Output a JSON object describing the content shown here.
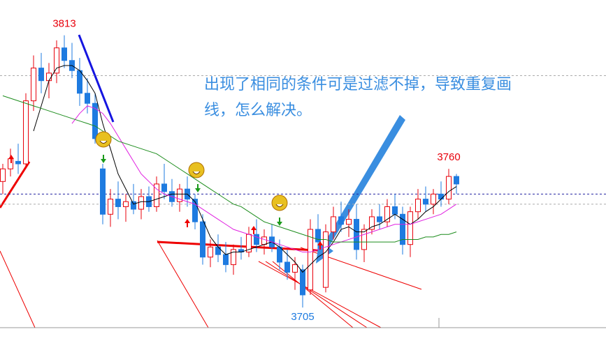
{
  "chart_data": {
    "type": "candlestick",
    "up_color": "#e8000b",
    "down_color": "#1e7be0",
    "ylim": [
      3697,
      3827
    ],
    "open": [
      3755,
      3760,
      3763,
      3762,
      3787,
      3800,
      3795,
      3798,
      3808,
      3803,
      3799,
      3790,
      3786,
      3760,
      3742,
      3748,
      3745,
      3747,
      3744,
      3749,
      3745,
      3754,
      3751,
      3747,
      3752,
      3748,
      3739,
      3725,
      3729,
      3726,
      3722,
      3728,
      3727,
      3734,
      3730,
      3733,
      3729,
      3723,
      3719,
      3720,
      3712,
      3736,
      3713,
      3735,
      3741,
      3738,
      3740,
      3728,
      3736,
      3741,
      3739,
      3745,
      3742,
      3730,
      3743,
      3748,
      3746,
      3750,
      3748,
      3757
    ],
    "high": [
      3762,
      3768,
      3770,
      3790,
      3805,
      3806,
      3802,
      3811,
      3813,
      3810,
      3804,
      3796,
      3790,
      3762,
      3752,
      3755,
      3750,
      3754,
      3752,
      3753,
      3757,
      3762,
      3756,
      3754,
      3757,
      3750,
      3742,
      3732,
      3734,
      3731,
      3730,
      3733,
      3737,
      3740,
      3736,
      3738,
      3732,
      3728,
      3725,
      3722,
      3740,
      3742,
      3738,
      3745,
      3747,
      3744,
      3746,
      3738,
      3744,
      3746,
      3748,
      3750,
      3745,
      3745,
      3752,
      3753,
      3752,
      3755,
      3760,
      3758
    ],
    "low": [
      3750,
      3757,
      3758,
      3760,
      3783,
      3790,
      3788,
      3794,
      3800,
      3796,
      3785,
      3782,
      3770,
      3738,
      3737,
      3740,
      3739,
      3742,
      3740,
      3743,
      3743,
      3748,
      3745,
      3743,
      3745,
      3736,
      3722,
      3721,
      3723,
      3719,
      3718,
      3724,
      3725,
      3727,
      3726,
      3727,
      3720,
      3716,
      3712,
      3705,
      3710,
      3728,
      3711,
      3732,
      3735,
      3733,
      3724,
      3723,
      3734,
      3736,
      3737,
      3740,
      3726,
      3725,
      3740,
      3743,
      3742,
      3745,
      3746,
      3750
    ],
    "close": [
      3760,
      3764,
      3762,
      3787,
      3800,
      3795,
      3798,
      3808,
      3803,
      3799,
      3790,
      3786,
      3772,
      3742,
      3748,
      3745,
      3747,
      3744,
      3749,
      3745,
      3754,
      3751,
      3747,
      3752,
      3748,
      3739,
      3725,
      3729,
      3726,
      3722,
      3728,
      3727,
      3734,
      3730,
      3733,
      3729,
      3723,
      3719,
      3722,
      3710,
      3736,
      3731,
      3735,
      3741,
      3738,
      3740,
      3728,
      3736,
      3741,
      3739,
      3745,
      3742,
      3730,
      3743,
      3748,
      3746,
      3750,
      3748,
      3757,
      3754
    ],
    "averages": [
      {
        "color": "#000000",
        "values": [
          null,
          null,
          null,
          null,
          3775,
          3785,
          3795,
          3800,
          3801,
          3801,
          3799,
          3795,
          3790,
          3778,
          3768,
          3758,
          3752,
          3746,
          3747,
          3747,
          3748,
          3749,
          3750,
          3750,
          3750,
          3747,
          3740,
          3733,
          3729,
          3726,
          3727,
          3727,
          3728,
          3729,
          3730,
          3731,
          3729,
          3726,
          3723,
          3719,
          3722,
          3725,
          3727,
          3731,
          3736,
          3737,
          3735,
          3735,
          3737,
          3738,
          3740,
          3742,
          3740,
          3738,
          3740,
          3743,
          3745,
          3748,
          3751,
          3753
        ]
      },
      {
        "color": "#e020e0",
        "values": [
          null,
          null,
          null,
          null,
          null,
          null,
          null,
          null,
          null,
          3778,
          3782,
          3785,
          3784,
          3782,
          3778,
          3773,
          3768,
          3763,
          3758,
          3755,
          3752,
          3750,
          3749,
          3748,
          3747,
          3746,
          3744,
          3742,
          3740,
          3738,
          3736,
          3735,
          3734,
          3733,
          3732,
          3731,
          3730,
          3729,
          3728,
          3727,
          3727,
          3728,
          3729,
          3730,
          3731,
          3732,
          3733,
          3734,
          3735,
          3736,
          3737,
          3738,
          3738,
          3738,
          3739,
          3740,
          3741,
          3742,
          3744,
          3746
        ]
      },
      {
        "color": "#1c8c1c",
        "values": [
          3789,
          3788,
          3787,
          3786,
          3785,
          3784,
          3783,
          3782,
          3781,
          3780,
          3779,
          3778,
          3777,
          3775,
          3773,
          3771,
          3770,
          3769,
          3768,
          3767,
          3766,
          3764,
          3762,
          3760,
          3758,
          3756,
          3754,
          3752,
          3750,
          3748,
          3746,
          3745,
          3743,
          3741,
          3739,
          3738,
          3737,
          3736,
          3735,
          3734,
          3733,
          3732,
          3732,
          3731,
          3731,
          3731,
          3731,
          3731,
          3731,
          3731,
          3731,
          3731,
          3732,
          3732,
          3732,
          3733,
          3733,
          3734,
          3734,
          3735
        ]
      }
    ],
    "hlines": [
      {
        "value": 3750,
        "color": "#2020a0"
      },
      {
        "value": 3797,
        "color": "#aaaaaa"
      },
      {
        "value": 3746,
        "color": "#aaaaaa"
      }
    ],
    "price_labels": [
      {
        "value": 3813,
        "label": "3813",
        "color": "#e8000b"
      },
      {
        "value": 3760,
        "label": "3760",
        "color": "#e8000b"
      },
      {
        "value": 3705,
        "label": "3705",
        "color": "#1e7be0"
      }
    ],
    "annotation": [
      "出现了相同的条件可是过滤不掉，导致重复画",
      "线，怎么解决。"
    ]
  }
}
